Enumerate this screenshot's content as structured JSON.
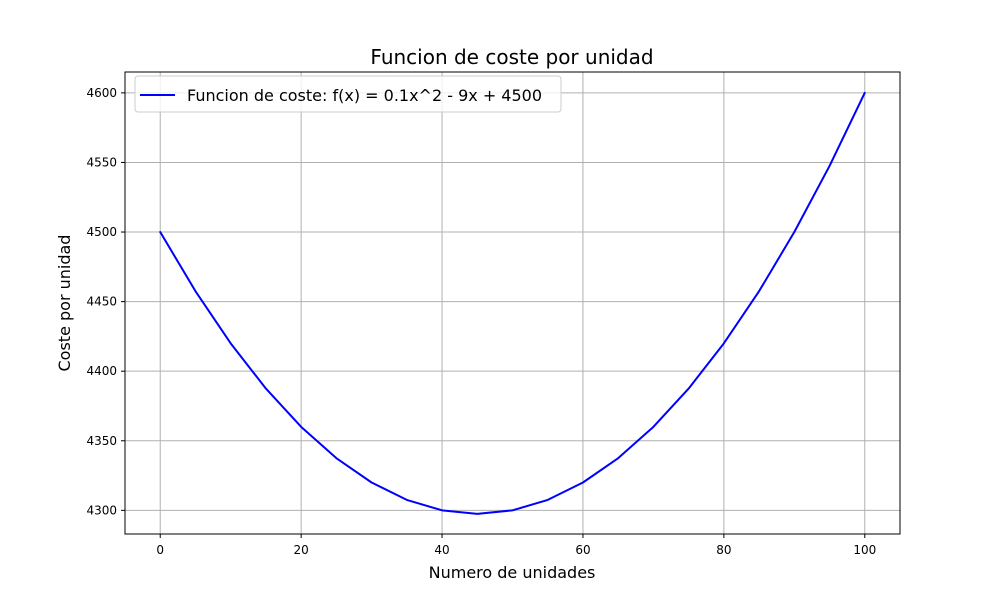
{
  "chart_data": {
    "type": "line",
    "title": "Funcion de coste por unidad",
    "xlabel": "Numero de unidades",
    "ylabel": "Coste por unidad",
    "xlim": [
      -5,
      105
    ],
    "ylim": [
      4283,
      4615
    ],
    "x_ticks": [
      0,
      20,
      40,
      60,
      80,
      100
    ],
    "y_ticks": [
      4300,
      4350,
      4400,
      4450,
      4500,
      4550,
      4600
    ],
    "grid": true,
    "legend_position": "top-left",
    "series": [
      {
        "name": "Funcion de coste: f(x) = 0.1x^2 - 9x + 4500",
        "color": "#0000ff",
        "x": [
          0,
          5,
          10,
          15,
          20,
          25,
          30,
          35,
          40,
          45,
          50,
          55,
          60,
          65,
          70,
          75,
          80,
          85,
          90,
          95,
          100
        ],
        "y": [
          4500,
          4457.5,
          4420,
          4387.5,
          4360,
          4337.5,
          4320,
          4307.5,
          4300,
          4297.5,
          4300,
          4307.5,
          4320,
          4337.5,
          4360,
          4387.5,
          4420,
          4457.5,
          4500,
          4547.5,
          4600
        ]
      }
    ]
  }
}
